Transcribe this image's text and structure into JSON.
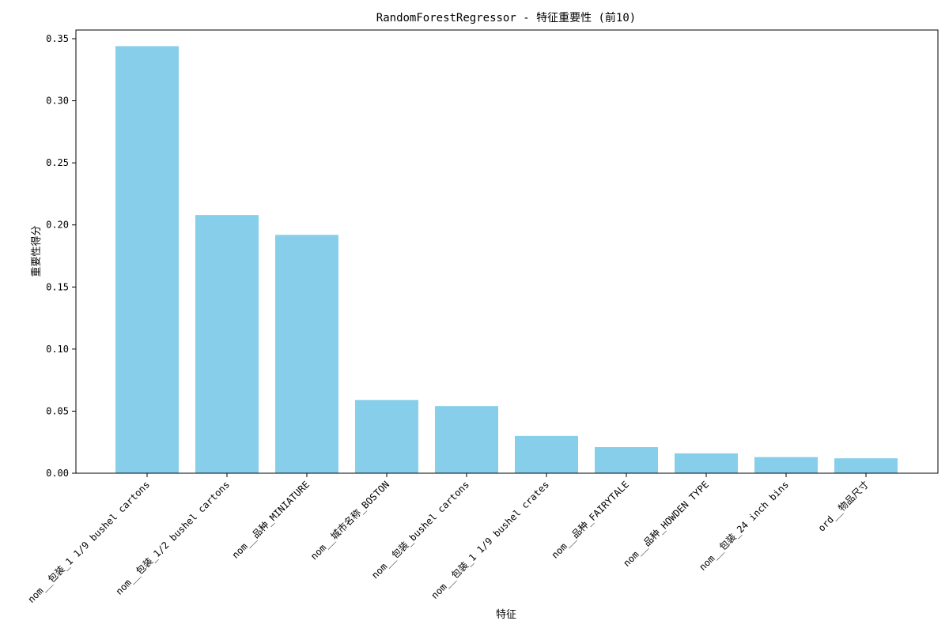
{
  "chart_data": {
    "type": "bar",
    "title": "RandomForestRegressor - 特征重要性 (前10)",
    "xlabel": "特征",
    "ylabel": "重要性得分",
    "ylim": [
      0,
      0.357
    ],
    "yticks": [
      "0.00",
      "0.05",
      "0.10",
      "0.15",
      "0.20",
      "0.25",
      "0.30",
      "0.35"
    ],
    "ytick_values": [
      0,
      0.05,
      0.1,
      0.15,
      0.2,
      0.25,
      0.3,
      0.35
    ],
    "categories": [
      "nom__包装_1 1/9 bushel cartons",
      "nom__包装_1/2 bushel cartons",
      "nom__品种_MINIATURE",
      "nom__城市名称_BOSTON",
      "nom__包装_bushel cartons",
      "nom__包装_1 1/9 bushel crates",
      "nom__品种_FAIRYTALE",
      "nom__品种_HOWDEN TYPE",
      "nom__包装_24 inch bins",
      "ord__物品尺寸"
    ],
    "values": [
      0.344,
      0.208,
      0.192,
      0.059,
      0.054,
      0.03,
      0.021,
      0.016,
      0.013,
      0.012
    ],
    "bar_color": "#87ceeb",
    "grid": false,
    "legend": "none"
  }
}
